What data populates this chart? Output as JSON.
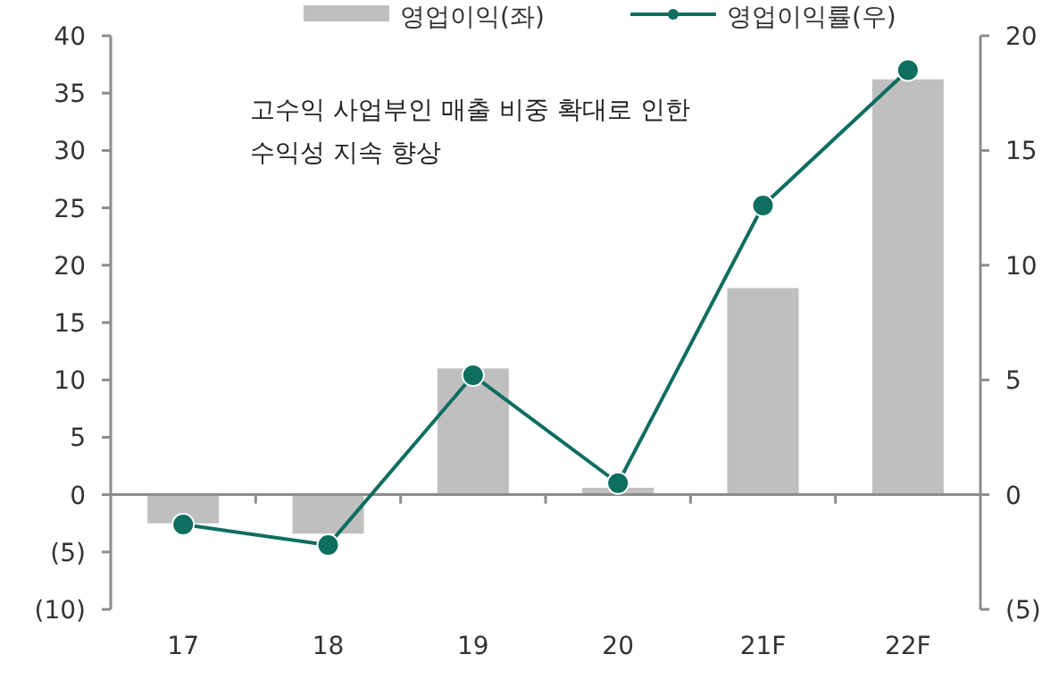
{
  "chart_data": {
    "type": "bar",
    "categories": [
      "17",
      "18",
      "19",
      "20",
      "21F",
      "22F"
    ],
    "series": [
      {
        "name": "영업이익(좌)",
        "color": "#bfbfbf",
        "values": [
          -2.5,
          -3.4,
          11,
          0.6,
          18,
          36.2
        ]
      },
      {
        "name": "영업이익률(우)",
        "type": "line",
        "axis": "y2",
        "color": "#0e6e5f",
        "marker": "circle",
        "values": [
          -1.3,
          -2.2,
          5.2,
          0.5,
          12.6,
          18.5
        ]
      }
    ],
    "ylim": [
      -10,
      40
    ],
    "yticks": [
      {
        "value": -10,
        "label": "(10)"
      },
      {
        "value": -5,
        "label": "(5)"
      },
      0,
      5,
      10,
      15,
      20,
      25,
      30,
      35,
      40
    ],
    "y2lim": [
      -5,
      20
    ],
    "y2ticks": [
      {
        "value": -5,
        "label": "(5)"
      },
      0,
      5,
      10,
      15,
      20
    ],
    "annotations": [
      "고수익 사업부인 매출 비중 확대로 인한 수익성  지속 향상"
    ],
    "legend": "top"
  }
}
